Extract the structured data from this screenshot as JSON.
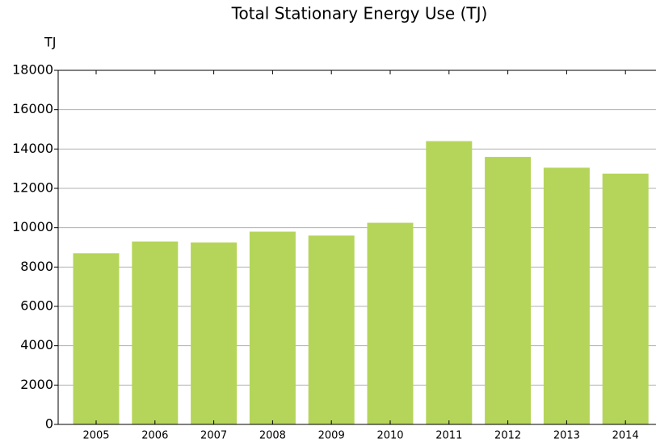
{
  "chart_data": {
    "type": "bar",
    "title": "Total Stationary Energy Use (TJ)",
    "y_label": "TJ",
    "categories": [
      "2005",
      "2006",
      "2007",
      "2008",
      "2009",
      "2010",
      "2011",
      "2012",
      "2013",
      "2014"
    ],
    "values": [
      8700,
      9300,
      9250,
      9800,
      9600,
      10250,
      14400,
      13600,
      13050,
      12750
    ],
    "color": "#b5d55a",
    "ylim": [
      0,
      18000
    ],
    "yticks": [
      0,
      2000,
      4000,
      6000,
      8000,
      10000,
      12000,
      14000,
      16000,
      18000
    ],
    "grid": true
  }
}
